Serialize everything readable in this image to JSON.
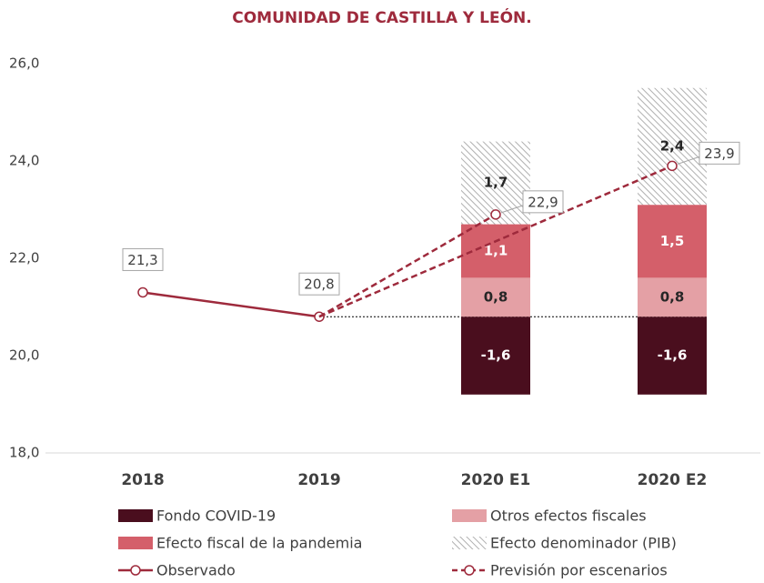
{
  "chart_data": {
    "type": "bar",
    "title": "COMUNIDAD DE CASTILLA Y LEÓN.",
    "categories": [
      "2018",
      "2019",
      "2020 E1",
      "2020 E2"
    ],
    "ylim": [
      18,
      26
    ],
    "yticks": [
      {
        "value": 18,
        "label": "18,0"
      },
      {
        "value": 20,
        "label": "20,0"
      },
      {
        "value": 22,
        "label": "22,0"
      },
      {
        "value": 24,
        "label": "24,0"
      },
      {
        "value": 26,
        "label": "26,0"
      }
    ],
    "series": [
      {
        "name": "Fondo COVID-19",
        "type": "bar",
        "color": "#4a0e1e",
        "values": [
          null,
          null,
          -1.6,
          -1.6
        ],
        "value_labels": [
          null,
          null,
          "-1,6",
          "-1,6"
        ]
      },
      {
        "name": "Otros efectos fiscales",
        "type": "bar",
        "color": "#e4a0a5",
        "values": [
          null,
          null,
          0.8,
          0.8
        ],
        "value_labels": [
          null,
          null,
          "0,8",
          "0,8"
        ]
      },
      {
        "name": "Efecto fiscal de la pandemia",
        "type": "bar",
        "color": "#d45f6a",
        "values": [
          null,
          null,
          1.1,
          1.5
        ],
        "value_labels": [
          null,
          null,
          "1,1",
          "1,5"
        ]
      },
      {
        "name": "Efecto denominador (PIB)",
        "type": "bar",
        "color": "#bfbfbf",
        "pattern": "hatch",
        "values": [
          null,
          null,
          1.7,
          2.4
        ],
        "value_labels": [
          null,
          null,
          "1,7",
          "2,4"
        ]
      },
      {
        "name": "Observado",
        "type": "line",
        "color": "#9e2a3c",
        "values": [
          21.3,
          20.8,
          null,
          null
        ],
        "value_labels": [
          "21,3",
          "20,8",
          null,
          null
        ]
      },
      {
        "name": "Previsión por escenarios",
        "type": "line",
        "dashed": true,
        "color": "#9e2a3c",
        "values": [
          null,
          null,
          22.9,
          23.9
        ],
        "value_labels": [
          null,
          null,
          "22,9",
          "23,9"
        ]
      }
    ]
  }
}
